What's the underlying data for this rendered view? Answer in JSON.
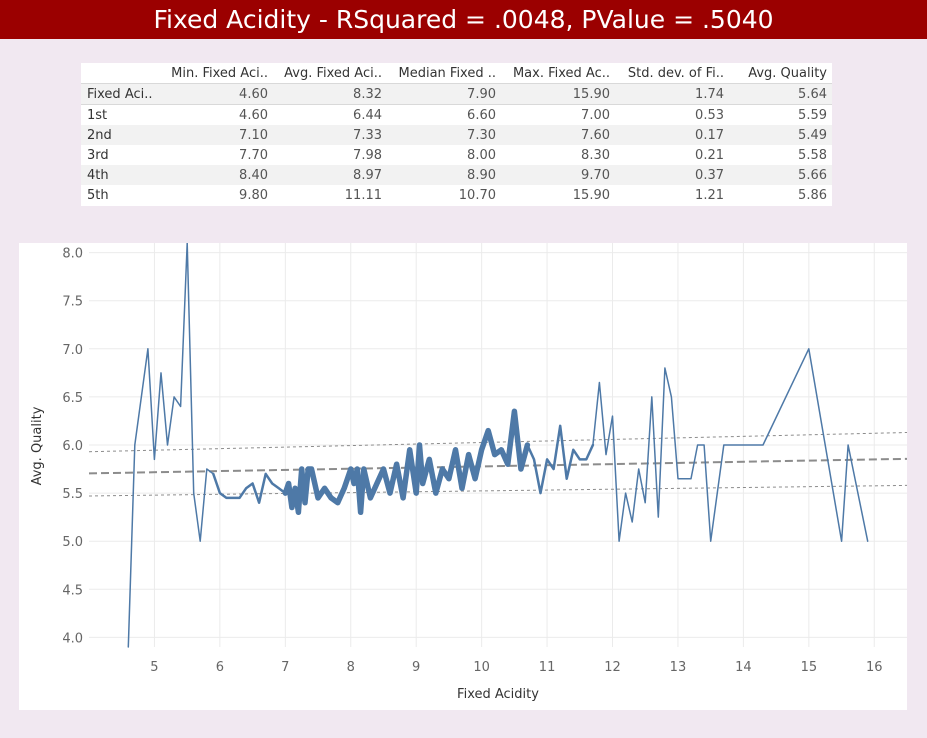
{
  "title": "Fixed Acidity  - RSquared = .0048, PValue = .5040",
  "table": {
    "columns": [
      "",
      "Min. Fixed Aci..",
      "Avg. Fixed Aci..",
      "Median Fixed ..",
      "Max. Fixed Ac..",
      "Std. dev. of Fi..",
      "Avg. Quality"
    ],
    "rows": [
      {
        "label": "Fixed Aci..",
        "values": [
          "4.60",
          "8.32",
          "7.90",
          "15.90",
          "1.74",
          "5.64"
        ]
      },
      {
        "label": "1st",
        "values": [
          "4.60",
          "6.44",
          "6.60",
          "7.00",
          "0.53",
          "5.59"
        ]
      },
      {
        "label": "2nd",
        "values": [
          "7.10",
          "7.33",
          "7.30",
          "7.60",
          "0.17",
          "5.49"
        ]
      },
      {
        "label": "3rd",
        "values": [
          "7.70",
          "7.98",
          "8.00",
          "8.30",
          "0.21",
          "5.58"
        ]
      },
      {
        "label": "4th",
        "values": [
          "8.40",
          "8.97",
          "8.90",
          "9.70",
          "0.37",
          "5.66"
        ]
      },
      {
        "label": "5th",
        "values": [
          "9.80",
          "11.11",
          "10.70",
          "15.90",
          "1.21",
          "5.86"
        ]
      }
    ]
  },
  "chart_data": {
    "type": "line",
    "xlabel": "Fixed Acidity",
    "ylabel": "Avg. Quality",
    "xlim": [
      4.0,
      16.5
    ],
    "ylim": [
      3.9,
      8.1
    ],
    "xticks": [
      5,
      6,
      7,
      8,
      9,
      10,
      11,
      12,
      13,
      14,
      15,
      16
    ],
    "xtick_labels": [
      "5",
      "6",
      "7",
      "8",
      "9",
      "10",
      "11",
      "12",
      "13",
      "14",
      "15",
      "16"
    ],
    "yticks": [
      4.0,
      4.5,
      5.0,
      5.5,
      6.0,
      6.5,
      7.0,
      7.5,
      8.0
    ],
    "ytick_labels": [
      "4.0",
      "4.5",
      "5.0",
      "5.5",
      "6.0",
      "6.5",
      "7.0",
      "7.5",
      "8.0"
    ],
    "grid": true,
    "line_color": "#4e79a7",
    "series": [
      {
        "segments": [
          {
            "weight": 1.5,
            "points": [
              [
                4.6,
                3.9
              ],
              [
                4.7,
                6.0
              ],
              [
                4.9,
                7.0
              ],
              [
                5.0,
                5.85
              ],
              [
                5.1,
                6.75
              ],
              [
                5.2,
                6.0
              ],
              [
                5.3,
                6.5
              ],
              [
                5.4,
                6.4
              ],
              [
                5.5,
                8.1
              ],
              [
                5.6,
                5.5
              ],
              [
                5.7,
                5.0
              ],
              [
                5.8,
                5.75
              ],
              [
                5.9,
                5.7
              ]
            ]
          },
          {
            "weight": 2.5,
            "points": [
              [
                5.9,
                5.7
              ],
              [
                6.0,
                5.5
              ],
              [
                6.1,
                5.45
              ],
              [
                6.2,
                5.45
              ],
              [
                6.3,
                5.45
              ],
              [
                6.4,
                5.55
              ],
              [
                6.5,
                5.6
              ],
              [
                6.6,
                5.4
              ],
              [
                6.7,
                5.7
              ],
              [
                6.8,
                5.6
              ],
              [
                6.9,
                5.55
              ],
              [
                7.0,
                5.5
              ]
            ]
          },
          {
            "weight": 5.5,
            "points": [
              [
                7.0,
                5.5
              ],
              [
                7.05,
                5.6
              ],
              [
                7.1,
                5.35
              ],
              [
                7.15,
                5.55
              ],
              [
                7.2,
                5.3
              ],
              [
                7.25,
                5.75
              ],
              [
                7.3,
                5.4
              ],
              [
                7.35,
                5.75
              ],
              [
                7.4,
                5.75
              ],
              [
                7.5,
                5.45
              ],
              [
                7.6,
                5.55
              ],
              [
                7.7,
                5.45
              ],
              [
                7.8,
                5.4
              ],
              [
                7.9,
                5.55
              ],
              [
                8.0,
                5.75
              ],
              [
                8.05,
                5.6
              ],
              [
                8.1,
                5.75
              ],
              [
                8.15,
                5.3
              ],
              [
                8.2,
                5.75
              ],
              [
                8.3,
                5.45
              ],
              [
                8.4,
                5.6
              ],
              [
                8.5,
                5.75
              ],
              [
                8.6,
                5.5
              ],
              [
                8.7,
                5.8
              ],
              [
                8.8,
                5.45
              ],
              [
                8.9,
                5.95
              ],
              [
                9.0,
                5.5
              ],
              [
                9.05,
                6.0
              ],
              [
                9.1,
                5.6
              ],
              [
                9.2,
                5.85
              ],
              [
                9.3,
                5.5
              ],
              [
                9.4,
                5.75
              ],
              [
                9.5,
                5.65
              ],
              [
                9.6,
                5.95
              ],
              [
                9.7,
                5.55
              ],
              [
                9.8,
                5.9
              ],
              [
                9.9,
                5.65
              ],
              [
                10.0,
                5.95
              ],
              [
                10.1,
                6.15
              ],
              [
                10.2,
                5.9
              ],
              [
                10.3,
                5.95
              ],
              [
                10.4,
                5.8
              ],
              [
                10.5,
                6.35
              ],
              [
                10.6,
                5.75
              ],
              [
                10.7,
                6.0
              ]
            ]
          },
          {
            "weight": 2.5,
            "points": [
              [
                10.7,
                6.0
              ],
              [
                10.8,
                5.85
              ],
              [
                10.9,
                5.5
              ],
              [
                11.0,
                5.85
              ],
              [
                11.1,
                5.75
              ],
              [
                11.2,
                6.2
              ],
              [
                11.3,
                5.65
              ],
              [
                11.4,
                5.95
              ],
              [
                11.5,
                5.85
              ],
              [
                11.6,
                5.85
              ],
              [
                11.7,
                6.0
              ]
            ]
          },
          {
            "weight": 1.5,
            "points": [
              [
                11.7,
                6.0
              ],
              [
                11.8,
                6.65
              ],
              [
                11.9,
                5.9
              ],
              [
                12.0,
                6.3
              ],
              [
                12.1,
                5.0
              ],
              [
                12.2,
                5.5
              ],
              [
                12.3,
                5.2
              ],
              [
                12.4,
                5.75
              ],
              [
                12.5,
                5.4
              ],
              [
                12.6,
                6.5
              ],
              [
                12.7,
                5.25
              ],
              [
                12.8,
                6.8
              ],
              [
                12.9,
                6.5
              ],
              [
                13.0,
                5.65
              ],
              [
                13.2,
                5.65
              ],
              [
                13.3,
                6.0
              ],
              [
                13.4,
                6.0
              ],
              [
                13.5,
                5.0
              ],
              [
                13.7,
                6.0
              ],
              [
                14.3,
                6.0
              ],
              [
                15.0,
                7.0
              ],
              [
                15.5,
                5.0
              ],
              [
                15.6,
                6.0
              ],
              [
                15.9,
                5.0
              ]
            ]
          }
        ]
      }
    ],
    "trend": {
      "slope": 0.0121,
      "intercept": 5.6564,
      "color": "#8c8c8c",
      "upper_band": [
        [
          4.0,
          5.93
        ],
        [
          16.5,
          6.13
        ]
      ],
      "lower_band": [
        [
          4.0,
          5.47
        ],
        [
          16.5,
          5.58
        ]
      ]
    }
  }
}
